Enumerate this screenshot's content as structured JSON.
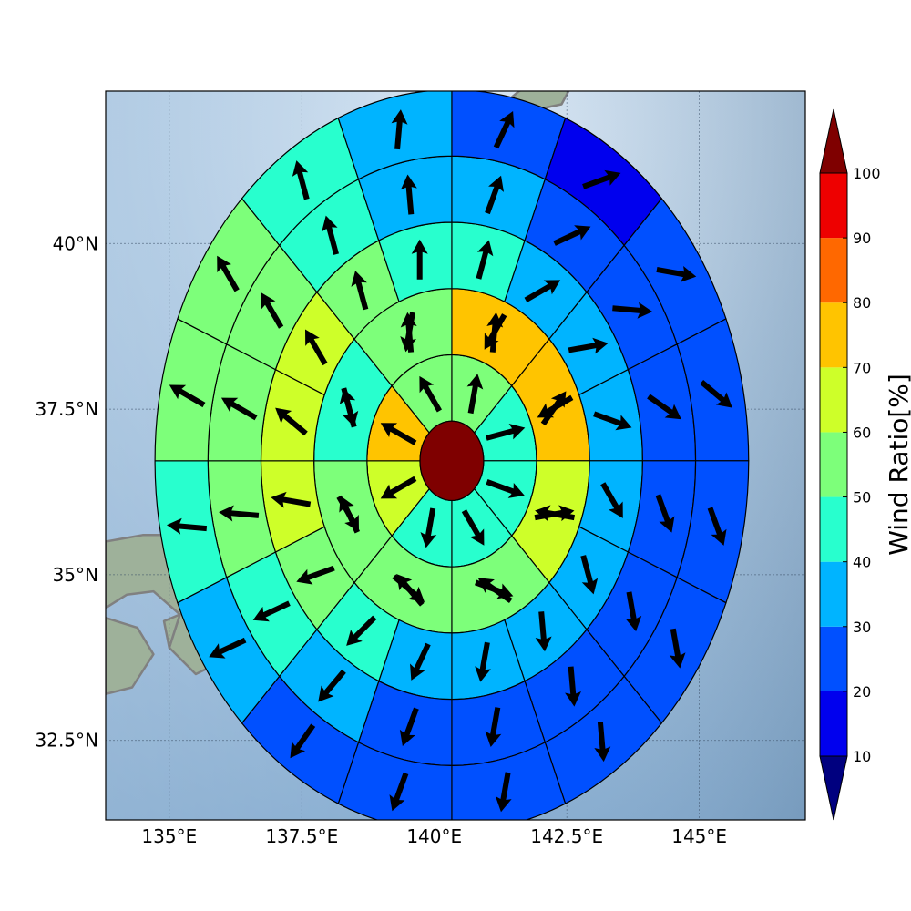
{
  "chart_data": {
    "type": "heatmap",
    "subtype": "polar-sector-map",
    "title": "",
    "x_axis": {
      "ticks": [
        135,
        137.5,
        140,
        142.5,
        145
      ],
      "tick_labels": [
        "135°E",
        "137.5°E",
        "140°E",
        "142.5°E",
        "145°E"
      ],
      "range": [
        133.8,
        147.0
      ]
    },
    "y_axis": {
      "ticks": [
        32.5,
        35,
        37.5,
        40
      ],
      "tick_labels": [
        "32.5°N",
        "35°N",
        "37.5°N",
        "40°N"
      ],
      "range": [
        31.3,
        42.3
      ]
    },
    "grid": true,
    "center": {
      "lon": 140.33,
      "lat": 36.72
    },
    "ring_edges_deg": [
      0,
      0.6,
      1.6,
      2.6,
      3.6,
      4.6,
      5.6
    ],
    "sector_counts": [
      8,
      8,
      16,
      16,
      16,
      16
    ],
    "core_value": 100,
    "wind_ratio": [
      [
        50,
        40,
        40,
        40,
        40,
        60,
        70,
        50
      ],
      [
        45,
        40,
        40,
        40,
        40,
        40,
        40,
        60,
        70,
        70,
        60,
        50,
        50,
        50,
        40,
        50
      ],
      [
        40,
        35,
        35,
        35,
        35,
        35,
        35,
        35,
        35,
        40,
        50,
        60,
        60,
        60,
        50,
        40
      ],
      [
        35,
        25,
        25,
        25,
        25,
        25,
        25,
        25,
        25,
        35,
        40,
        55,
        55,
        55,
        40,
        35
      ],
      [
        25,
        15,
        25,
        25,
        25,
        25,
        25,
        25,
        25,
        25,
        30,
        40,
        55,
        50,
        40,
        30
      ],
      [
        25,
        15,
        15,
        25,
        25,
        25,
        25,
        25,
        25,
        25,
        25,
        25,
        35,
        45,
        45,
        40
      ]
    ],
    "wind_direction_deg": [
      [
        10,
        75,
        110,
        150,
        190,
        240,
        300,
        330
      ],
      [
        5,
        35,
        80,
        110,
        130,
        150,
        165,
        190,
        210,
        240,
        280,
        305,
        320,
        335,
        345,
        355
      ],
      [
        15,
        60,
        80,
        110,
        150,
        165,
        175,
        190,
        205,
        225,
        250,
        280,
        310,
        330,
        345,
        0
      ],
      [
        20,
        65,
        95,
        125,
        160,
        170,
        175,
        190,
        200,
        220,
        245,
        275,
        300,
        330,
        345,
        355
      ],
      [
        25,
        70,
        100,
        130,
        160,
        170,
        175,
        190,
        200,
        215,
        245,
        275,
        300,
        330,
        345,
        5
      ],
      [
        30,
        70,
        100,
        130,
        160,
        170,
        175,
        190,
        200,
        220,
        245,
        280,
        300,
        330,
        350,
        10
      ]
    ],
    "colorbar": {
      "label": "Wind Ratio[%]",
      "levels": [
        10,
        20,
        30,
        40,
        50,
        60,
        70,
        80,
        90,
        100
      ],
      "tick_labels": [
        "10",
        "20",
        "30",
        "40",
        "50",
        "60",
        "70",
        "80",
        "90",
        "100"
      ],
      "extend": "both",
      "colors": [
        "#00007f",
        "#0000ee",
        "#0050ff",
        "#00b4ff",
        "#28ffce",
        "#7dff7a",
        "#ceff29",
        "#ffc400",
        "#ff6800",
        "#ee0000",
        "#7f0000"
      ]
    },
    "background": {
      "ocean_color": "#8fb4d6",
      "land_color": "#9eb19a",
      "coastline_color": "#808080"
    }
  }
}
